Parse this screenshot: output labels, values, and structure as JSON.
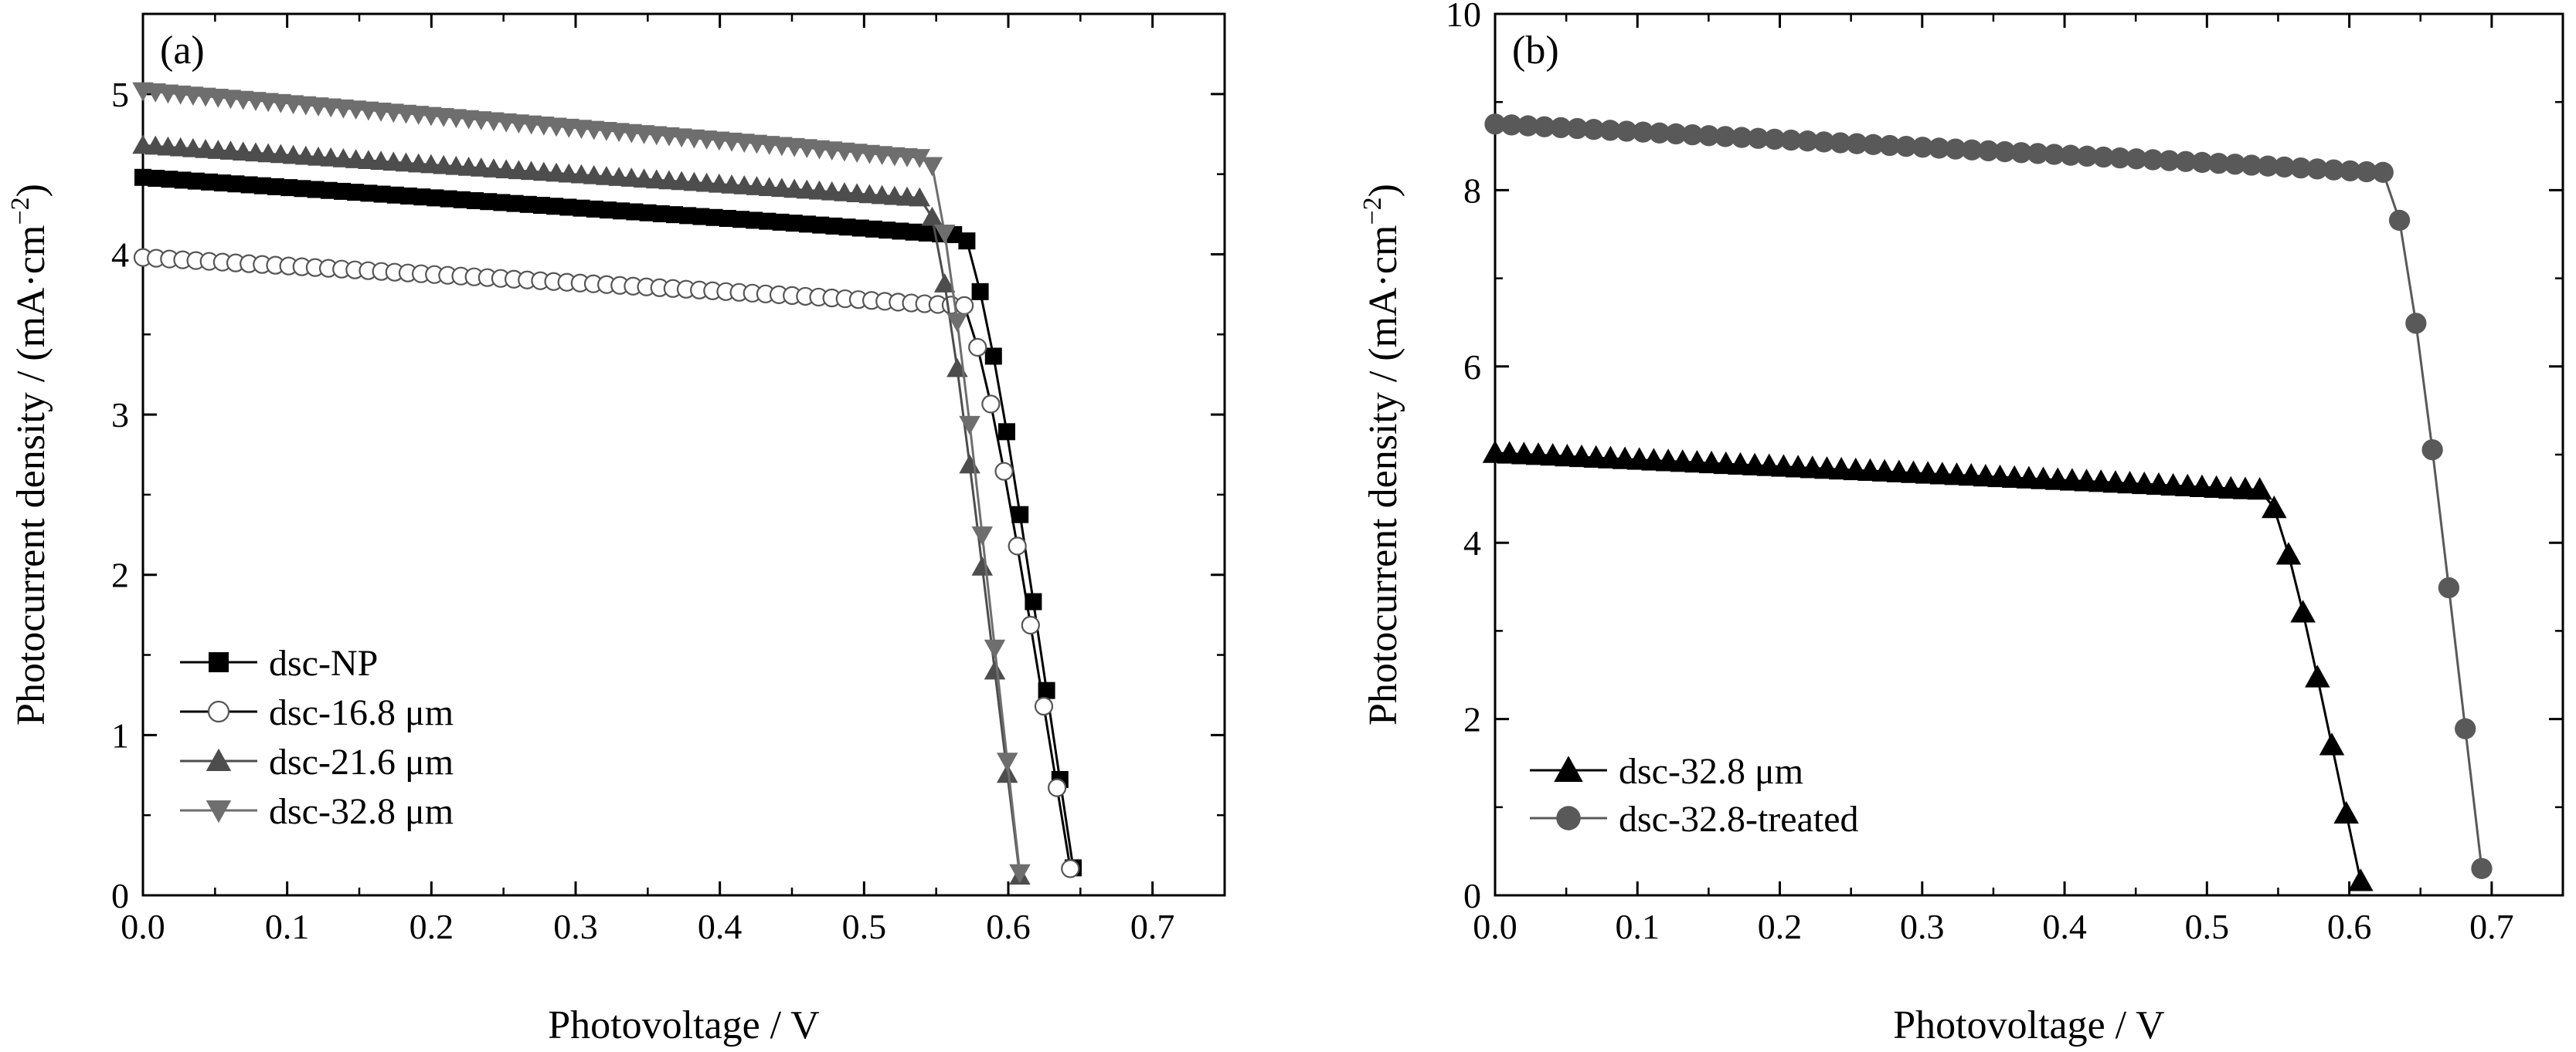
{
  "chart_data": [
    {
      "type": "line",
      "panel_label": "(a)",
      "xlabel": "Photovoltage / V",
      "ylabel": "Photocurrent density / (mA·cm",
      "ylabel_sup": "−2",
      "ylabel_close": ")",
      "xlim": [
        0.0,
        0.75
      ],
      "ylim": [
        0,
        5.5
      ],
      "xticks": [
        "0.0",
        "0.1",
        "0.2",
        "0.3",
        "0.4",
        "0.5",
        "0.6",
        "0.7"
      ],
      "yticks": [
        "0",
        "1",
        "2",
        "3",
        "4",
        "5"
      ],
      "legend_position": "bottom-left",
      "series": [
        {
          "name": "dsc-NP",
          "marker": "square",
          "color": "#000000",
          "isc": 4.48,
          "plateau_end": 4.12,
          "voc": 0.645,
          "knee": 0.075,
          "knee_width": 0.024,
          "points": 70
        },
        {
          "name": "dsc-16.8 μm",
          "marker": "circle-open",
          "color": "#000000",
          "isc": 3.98,
          "plateau_end": 3.68,
          "voc": 0.643,
          "knee": 0.073,
          "knee_width": 0.024,
          "points": 70
        },
        {
          "name": "dsc-21.6 μm",
          "marker": "triangle-up",
          "color": "#4d4d4d",
          "isc": 4.68,
          "plateau_end": 4.35,
          "voc": 0.608,
          "knee": 0.064,
          "knee_width": 0.018,
          "points": 70
        },
        {
          "name": "dsc-32.8 μm",
          "marker": "triangle-down",
          "color": "#6e6e6e",
          "isc": 5.02,
          "plateau_end": 4.6,
          "voc": 0.608,
          "knee": 0.062,
          "knee_width": 0.018,
          "points": 70
        }
      ]
    },
    {
      "type": "line",
      "panel_label": "(b)",
      "xlabel": "Photovoltage / V",
      "ylabel": "Photocurrent density / (mA·cm",
      "ylabel_sup": "−2",
      "ylabel_close": ")",
      "xlim": [
        0.0,
        0.75
      ],
      "ylim": [
        0,
        10
      ],
      "xticks": [
        "0.0",
        "0.1",
        "0.2",
        "0.3",
        "0.4",
        "0.5",
        "0.6",
        "0.7"
      ],
      "yticks": [
        "0",
        "2",
        "4",
        "6",
        "8",
        "10"
      ],
      "legend_position": "bottom-left",
      "series": [
        {
          "name": "dsc-32.8 μm",
          "marker": "triangle-up",
          "color": "#000000",
          "isc": 5.02,
          "plateau_end": 4.6,
          "voc": 0.608,
          "knee": 0.066,
          "knee_width": 0.02,
          "points": 60
        },
        {
          "name": "dsc-32.8-treated",
          "marker": "circle",
          "color": "#595959",
          "isc": 8.75,
          "plateau_end": 8.2,
          "voc": 0.693,
          "knee": 0.065,
          "knee_width": 0.02,
          "points": 60
        }
      ]
    }
  ]
}
